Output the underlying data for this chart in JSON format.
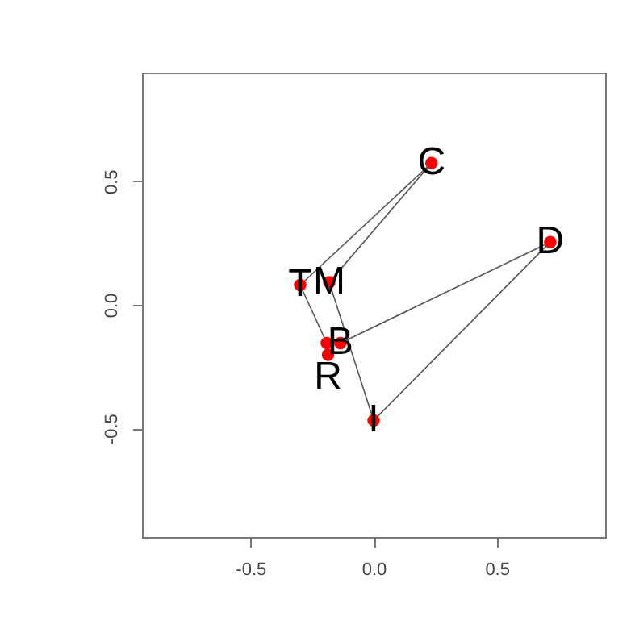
{
  "chart_data": {
    "type": "scatter",
    "xlim": [
      -0.94,
      0.94
    ],
    "ylim": [
      -0.94,
      0.94
    ],
    "xticks": [
      -0.5,
      {
        "value": 0,
        "label": "0.0"
      },
      0.5
    ],
    "yticks": [
      -0.5,
      {
        "value": 0,
        "label": "0.0"
      },
      0.5
    ],
    "grid": false,
    "series": [
      {
        "type": "line",
        "color": "#555555",
        "x": [
          0.235,
          -0.298
        ],
        "values": [
          0.574,
          0.08
        ]
      },
      {
        "type": "line",
        "color": "#555555",
        "x": [
          0.235,
          -0.18
        ],
        "values": [
          0.574,
          0.091
        ]
      },
      {
        "type": "line",
        "color": "#555555",
        "x": [
          0.717,
          -0.135
        ],
        "values": [
          0.254,
          -0.155
        ]
      },
      {
        "type": "line",
        "color": "#555555",
        "x": [
          0.717,
          0.0
        ],
        "values": [
          0.254,
          -0.468
        ]
      },
      {
        "type": "line",
        "color": "#555555",
        "x": [
          -0.298,
          -0.19
        ],
        "values": [
          0.08,
          -0.155
        ]
      },
      {
        "type": "line",
        "color": "#555555",
        "x": [
          -0.18,
          0.0
        ],
        "values": [
          0.091,
          -0.468
        ]
      },
      {
        "type": "scatter",
        "marker": "circle",
        "color": "#ff0000",
        "x": [
          0.235,
          0.717,
          -0.298,
          -0.18,
          -0.135,
          -0.19,
          -0.185,
          0.0
        ],
        "values": [
          0.574,
          0.254,
          0.08,
          0.091,
          -0.155,
          -0.155,
          -0.202,
          -0.468
        ]
      }
    ],
    "annotations": [
      {
        "text": "C",
        "x": 0.235,
        "y": 0.574
      },
      {
        "text": "D",
        "x": 0.717,
        "y": 0.254
      },
      {
        "text": "T",
        "x": -0.298,
        "y": 0.08
      },
      {
        "text": "M",
        "x": -0.18,
        "y": 0.091
      },
      {
        "text": "B",
        "x": -0.135,
        "y": -0.155
      },
      {
        "text": "R",
        "x": -0.185,
        "y": -0.202
      },
      {
        "text": "I",
        "x": 0.0,
        "y": -0.468
      }
    ]
  }
}
